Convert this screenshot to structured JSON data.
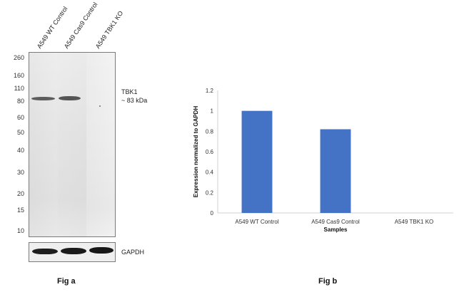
{
  "western_blot": {
    "lanes": [
      {
        "label": "A549 WT Control"
      },
      {
        "label": "A549 Cas9 Control"
      },
      {
        "label": "A549 TBK1 KO"
      }
    ],
    "markers": [
      "260",
      "160",
      "110",
      "80",
      "60",
      "50",
      "40",
      "30",
      "20",
      "15",
      "10"
    ],
    "target_label": "TBK1",
    "target_size": "~ 83 kDa",
    "loading_control": "GAPDH",
    "caption": "Fig a"
  },
  "chart_data": {
    "type": "bar",
    "categories": [
      "A549 WT Control",
      "A549 Cas9 Control",
      "A549 TBK1 KO"
    ],
    "values": [
      1.0,
      0.82,
      0.0
    ],
    "title": "",
    "xlabel": "Samples",
    "ylabel": "Expression  normalized to GAPDH",
    "ylim": [
      0,
      1.2
    ],
    "yticks": [
      "0",
      "0.2",
      "0.4",
      "0.6",
      "0.8",
      "1",
      "1.2"
    ],
    "ytick_values": [
      0,
      0.2,
      0.4,
      0.6,
      0.8,
      1.0,
      1.2
    ],
    "bar_color": "#4472c4",
    "grid": false,
    "legend": "none",
    "caption": "Fig b"
  }
}
